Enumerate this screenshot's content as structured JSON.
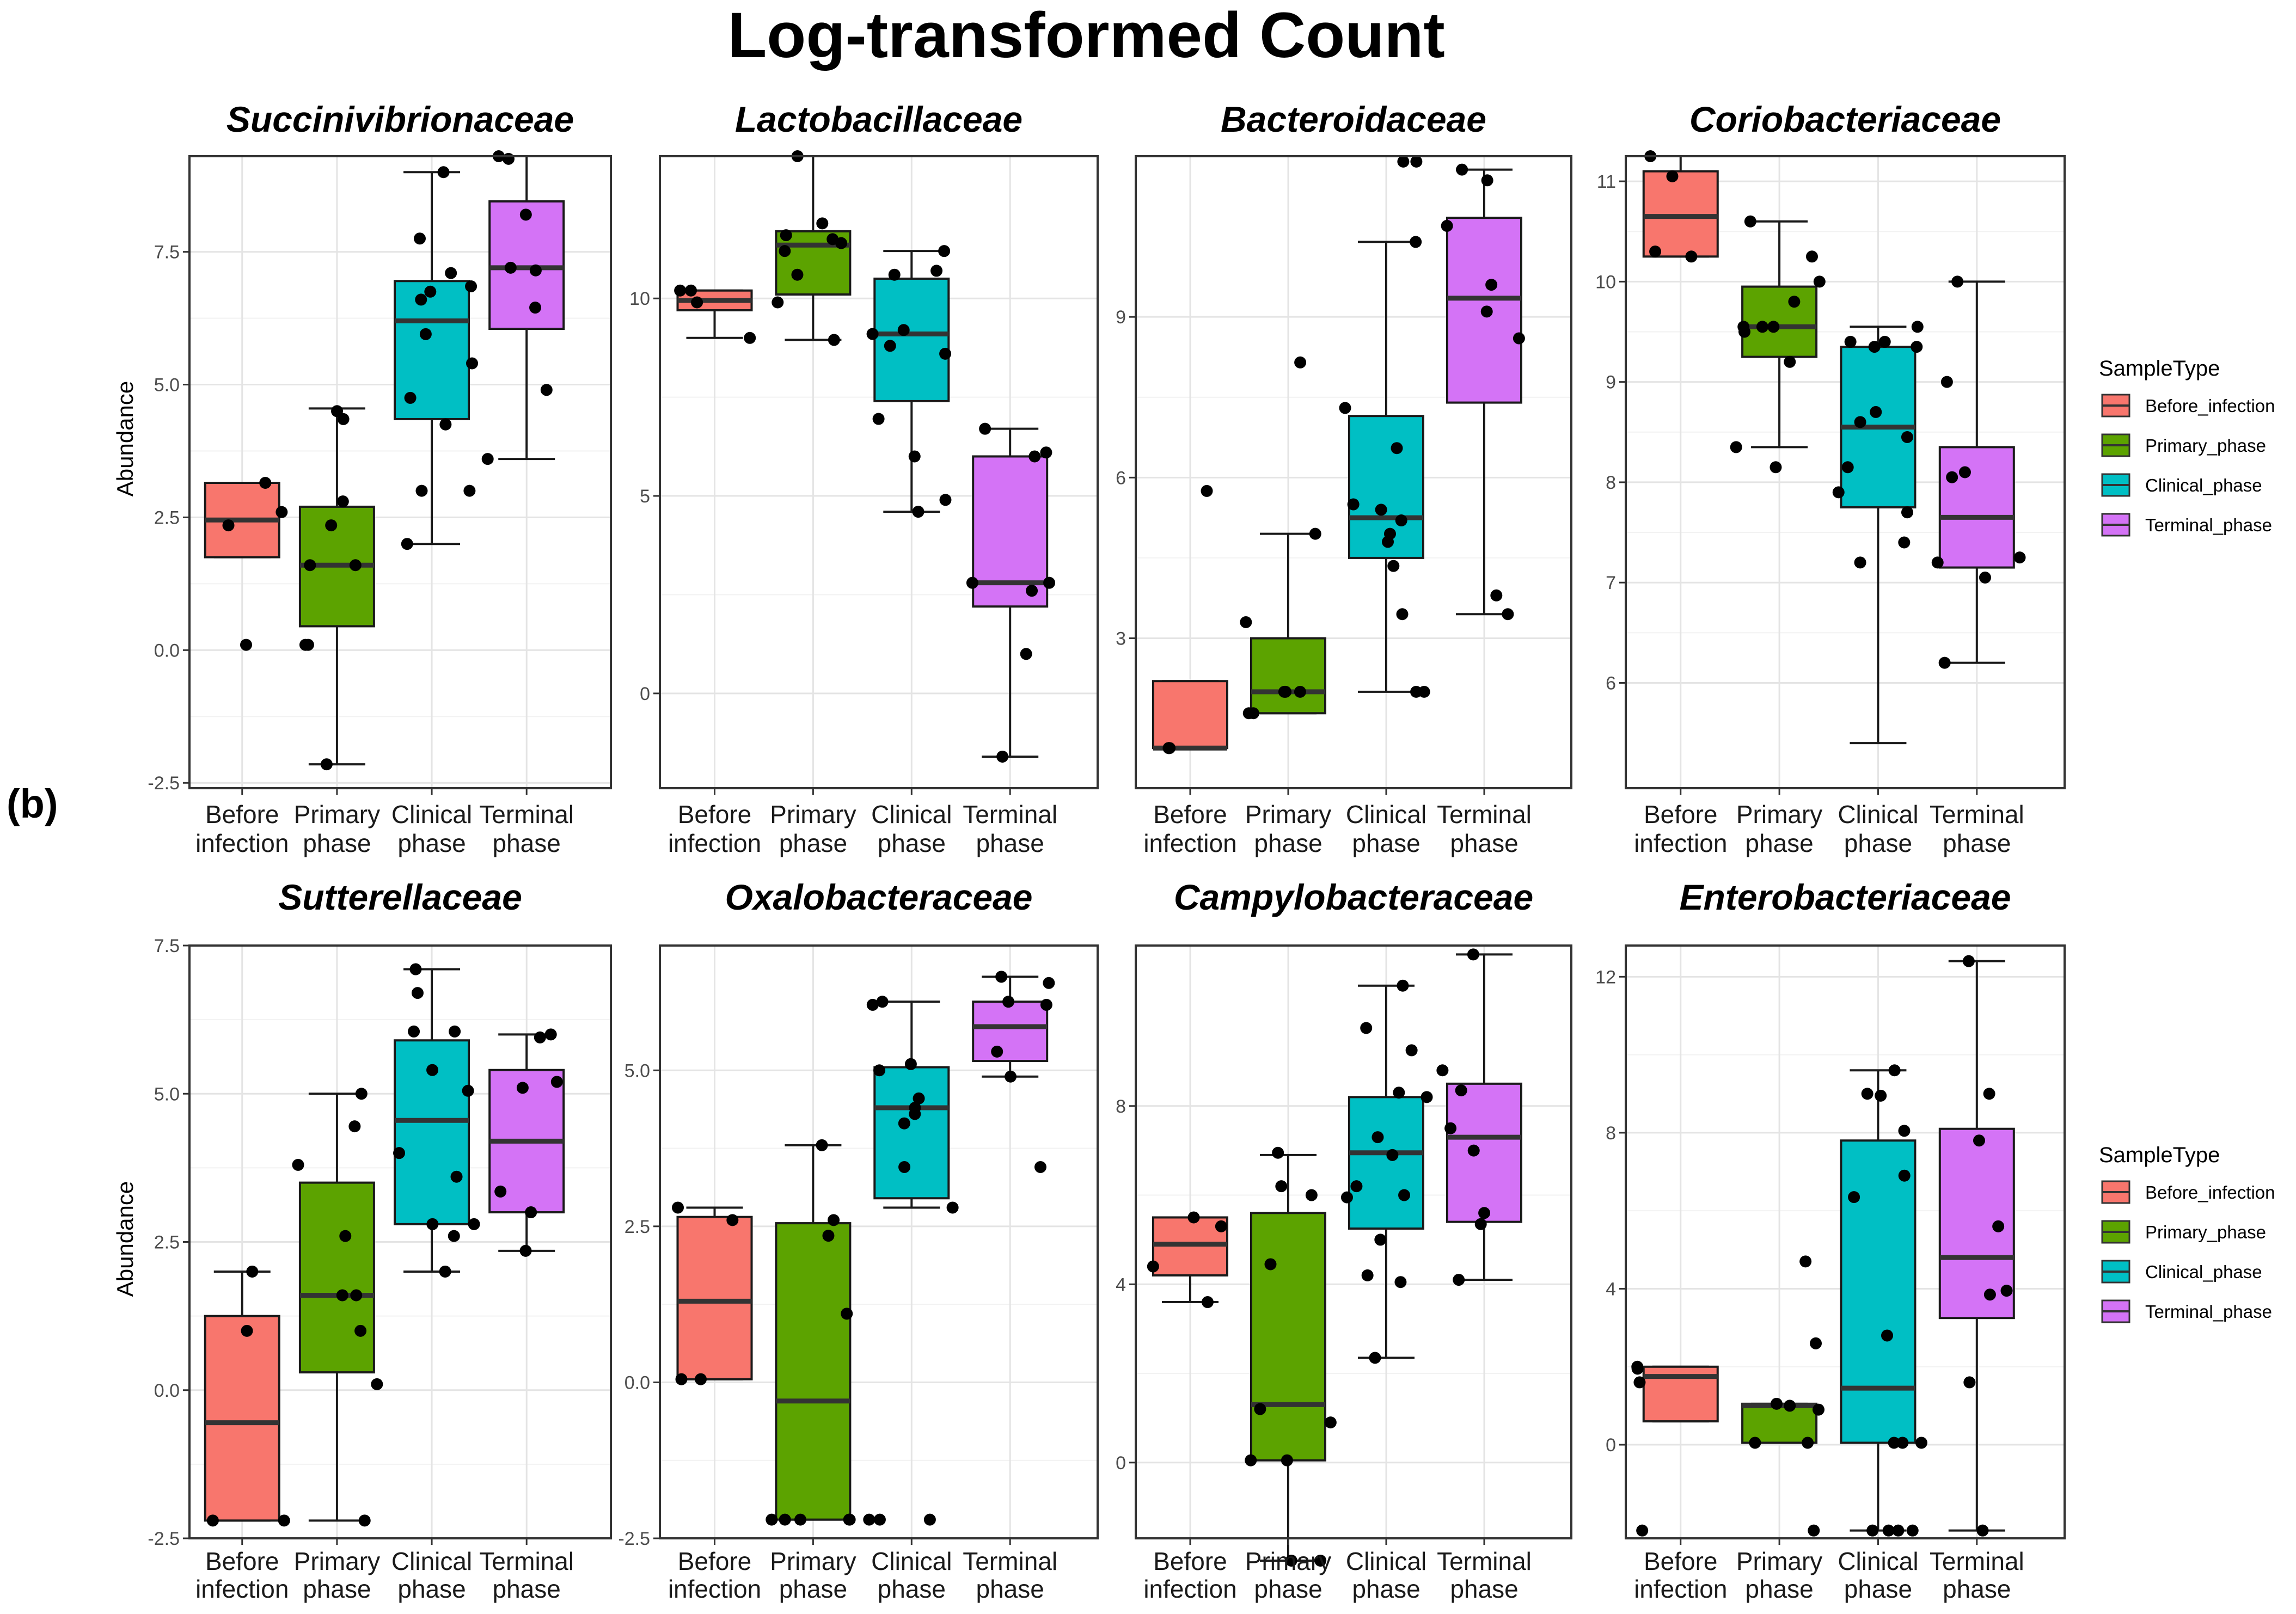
{
  "figure": {
    "title": "Log-transformed Count",
    "panel_label": "(b)",
    "ylabel": "Abundance",
    "category_labels": [
      [
        "Before",
        "infection"
      ],
      [
        "Primary",
        "phase"
      ],
      [
        "Clinical",
        "phase"
      ],
      [
        "Terminal",
        "phase"
      ]
    ]
  },
  "legend": {
    "title": "SampleType",
    "items": [
      {
        "label": "Before_infection",
        "color": "#F8766D"
      },
      {
        "label": "Primary_phase",
        "color": "#5CA300"
      },
      {
        "label": "Clinical_phase",
        "color": "#00BFC4"
      },
      {
        "label": "Terminal_phase",
        "color": "#D473F6"
      }
    ]
  },
  "chart_data": [
    {
      "type": "boxplot",
      "title": "Succinivibrionaceae",
      "ylim": [
        -2.6,
        9.3
      ],
      "yticks": [
        -2.5,
        0.0,
        2.5,
        5.0,
        7.5
      ],
      "ytick_labels": [
        "-2.5",
        "0.0",
        "2.5",
        "5.0",
        "7.5"
      ],
      "boxes": [
        {
          "q1": 1.75,
          "median": 2.45,
          "q3": 3.15,
          "whisker_low": 1.75,
          "whisker_high": 3.15,
          "points": [
            0.1,
            2.35,
            2.6,
            3.15
          ]
        },
        {
          "q1": 0.45,
          "median": 1.6,
          "q3": 2.7,
          "whisker_low": -2.15,
          "whisker_high": 4.55,
          "points": [
            -2.15,
            0.1,
            0.1,
            1.6,
            1.6,
            2.35,
            2.8,
            4.35,
            4.5
          ]
        },
        {
          "q1": 4.35,
          "median": 6.2,
          "q3": 6.95,
          "whisker_low": 2.0,
          "whisker_high": 9.0,
          "points": [
            2.0,
            3.0,
            3.0,
            4.25,
            4.75,
            5.4,
            5.95,
            6.6,
            6.75,
            6.85,
            7.1,
            7.75,
            9.0
          ]
        },
        {
          "q1": 6.05,
          "median": 7.2,
          "q3": 8.45,
          "whisker_low": 3.6,
          "whisker_high": 9.3,
          "points": [
            3.6,
            4.9,
            6.45,
            7.15,
            7.2,
            8.2,
            9.25,
            9.3
          ]
        }
      ]
    },
    {
      "type": "boxplot",
      "title": "Lactobacillaceae",
      "ylim": [
        -2.4,
        13.6
      ],
      "yticks": [
        0,
        5,
        10
      ],
      "ytick_labels": [
        "0",
        "5",
        "10"
      ],
      "boxes": [
        {
          "q1": 9.7,
          "median": 9.95,
          "q3": 10.2,
          "whisker_low": 9.0,
          "whisker_high": 10.2,
          "points": [
            9.0,
            9.9,
            10.2,
            10.2
          ]
        },
        {
          "q1": 10.1,
          "median": 11.35,
          "q3": 11.7,
          "whisker_low": 8.95,
          "whisker_high": 13.6,
          "points": [
            8.95,
            9.9,
            10.6,
            11.2,
            11.4,
            11.5,
            11.6,
            11.9,
            13.6
          ]
        },
        {
          "q1": 7.4,
          "median": 9.1,
          "q3": 10.5,
          "whisker_low": 4.6,
          "whisker_high": 11.2,
          "points": [
            4.6,
            4.9,
            6.0,
            6.95,
            8.6,
            8.8,
            9.1,
            9.2,
            10.6,
            10.7,
            11.2
          ]
        },
        {
          "q1": 2.2,
          "median": 2.8,
          "q3": 6.0,
          "whisker_low": -1.6,
          "whisker_high": 6.7,
          "points": [
            -1.6,
            1.0,
            2.6,
            2.8,
            2.8,
            6.0,
            6.1,
            6.7
          ]
        }
      ]
    },
    {
      "type": "boxplot",
      "title": "Bacteroidaceae",
      "ylim": [
        0.2,
        12.0
      ],
      "yticks": [
        3,
        6,
        9
      ],
      "ytick_labels": [
        "3",
        "6",
        "9"
      ],
      "boxes": [
        {
          "q1": 0.95,
          "median": 0.95,
          "q3": 2.2,
          "whisker_low": 0.95,
          "whisker_high": 2.2,
          "points": [
            0.95,
            0.95,
            0.95,
            5.75
          ]
        },
        {
          "q1": 1.6,
          "median": 2.0,
          "q3": 3.0,
          "whisker_low": 1.6,
          "whisker_high": 4.95,
          "points": [
            1.6,
            1.6,
            2.0,
            2.0,
            2.0,
            3.3,
            4.95,
            8.15
          ]
        },
        {
          "q1": 4.5,
          "median": 5.25,
          "q3": 7.15,
          "whisker_low": 2.0,
          "whisker_high": 10.4,
          "points": [
            2.0,
            2.0,
            3.45,
            4.35,
            4.8,
            4.95,
            5.2,
            5.4,
            5.5,
            6.55,
            7.3,
            10.4,
            11.9,
            11.9
          ]
        },
        {
          "q1": 7.4,
          "median": 9.35,
          "q3": 10.85,
          "whisker_low": 3.45,
          "whisker_high": 11.75,
          "points": [
            3.45,
            3.8,
            8.6,
            9.1,
            9.6,
            10.7,
            11.55,
            11.75
          ]
        }
      ]
    },
    {
      "type": "boxplot",
      "title": "Coriobacteriaceae",
      "ylim": [
        4.95,
        11.25
      ],
      "yticks": [
        6,
        7,
        8,
        9,
        10,
        11
      ],
      "ytick_labels": [
        "6",
        "7",
        "8",
        "9",
        "10",
        "11"
      ],
      "boxes": [
        {
          "q1": 10.25,
          "median": 10.65,
          "q3": 11.1,
          "whisker_low": 10.25,
          "whisker_high": 11.25,
          "points": [
            10.25,
            10.3,
            11.05,
            11.25
          ]
        },
        {
          "q1": 9.25,
          "median": 9.55,
          "q3": 9.95,
          "whisker_low": 8.35,
          "whisker_high": 10.6,
          "points": [
            8.15,
            8.35,
            9.2,
            9.5,
            9.55,
            9.55,
            9.55,
            9.8,
            10.0,
            10.25,
            10.6
          ]
        },
        {
          "q1": 7.75,
          "median": 8.55,
          "q3": 9.35,
          "whisker_low": 5.4,
          "whisker_high": 9.55,
          "points": [
            7.2,
            7.4,
            7.7,
            7.9,
            8.15,
            8.45,
            8.6,
            8.7,
            9.35,
            9.35,
            9.4,
            9.4,
            9.55
          ]
        },
        {
          "q1": 7.15,
          "median": 7.65,
          "q3": 8.35,
          "whisker_low": 6.2,
          "whisker_high": 10.0,
          "points": [
            6.2,
            7.05,
            7.2,
            7.25,
            8.05,
            8.1,
            9.0,
            10.0
          ]
        }
      ]
    },
    {
      "type": "boxplot",
      "title": "Sutterellaceae",
      "ylim": [
        -2.5,
        7.5
      ],
      "yticks": [
        -2.5,
        0.0,
        2.5,
        5.0,
        7.5
      ],
      "ytick_labels": [
        "-2.5",
        "0.0",
        "2.5",
        "5.0",
        "7.5"
      ],
      "boxes": [
        {
          "q1": -2.2,
          "median": -0.55,
          "q3": 1.25,
          "whisker_low": -2.2,
          "whisker_high": 2.0,
          "points": [
            -2.2,
            -2.2,
            1.0,
            2.0
          ]
        },
        {
          "q1": 0.3,
          "median": 1.6,
          "q3": 3.5,
          "whisker_low": -2.2,
          "whisker_high": 5.0,
          "points": [
            -2.2,
            0.1,
            1.0,
            1.6,
            1.6,
            2.6,
            3.8,
            4.45,
            5.0
          ]
        },
        {
          "q1": 2.8,
          "median": 4.55,
          "q3": 5.9,
          "whisker_low": 2.0,
          "whisker_high": 7.1,
          "points": [
            2.0,
            2.6,
            2.8,
            2.8,
            3.6,
            4.0,
            5.05,
            5.4,
            6.05,
            6.05,
            6.7,
            7.1
          ]
        },
        {
          "q1": 3.0,
          "median": 4.2,
          "q3": 5.4,
          "whisker_low": 2.35,
          "whisker_high": 6.0,
          "points": [
            2.35,
            3.0,
            3.35,
            5.1,
            5.2,
            5.95,
            6.0
          ]
        }
      ]
    },
    {
      "type": "boxplot",
      "title": "Oxalobacteraceae",
      "ylim": [
        -2.5,
        7.0
      ],
      "yticks": [
        -2.5,
        0.0,
        2.5,
        5.0
      ],
      "ytick_labels": [
        "-2.5",
        "0.0",
        "2.5",
        "5.0"
      ],
      "boxes": [
        {
          "q1": 0.05,
          "median": 1.3,
          "q3": 2.65,
          "whisker_low": 0.05,
          "whisker_high": 2.8,
          "points": [
            0.05,
            0.05,
            2.6,
            2.8
          ]
        },
        {
          "q1": -2.2,
          "median": -0.3,
          "q3": 2.55,
          "whisker_low": -2.2,
          "whisker_high": 3.8,
          "points": [
            -2.2,
            -2.2,
            -2.2,
            -2.2,
            -2.2,
            1.1,
            2.35,
            2.6,
            3.8
          ]
        },
        {
          "q1": 2.95,
          "median": 4.4,
          "q3": 5.05,
          "whisker_low": 2.8,
          "whisker_high": 6.1,
          "points": [
            -2.2,
            -2.2,
            -2.2,
            2.8,
            3.45,
            4.15,
            4.3,
            4.4,
            4.55,
            5.0,
            5.1,
            6.05,
            6.1
          ]
        },
        {
          "q1": 5.15,
          "median": 5.7,
          "q3": 6.1,
          "whisker_low": 4.9,
          "whisker_high": 6.5,
          "points": [
            3.45,
            4.9,
            5.3,
            6.05,
            6.1,
            6.4,
            6.5
          ]
        }
      ]
    },
    {
      "type": "boxplot",
      "title": "Campylobacteraceae",
      "ylim": [
        -1.7,
        11.6
      ],
      "yticks": [
        0,
        4,
        8
      ],
      "ytick_labels": [
        "0",
        "4",
        "8"
      ],
      "boxes": [
        {
          "q1": 4.2,
          "median": 4.9,
          "q3": 5.5,
          "whisker_low": 3.6,
          "whisker_high": 5.5,
          "points": [
            3.6,
            4.4,
            5.3,
            5.5
          ]
        },
        {
          "q1": 0.05,
          "median": 1.3,
          "q3": 5.6,
          "whisker_low": -2.2,
          "whisker_high": 6.9,
          "points": [
            -2.2,
            -2.2,
            0.05,
            0.05,
            0.9,
            1.2,
            4.45,
            6.0,
            6.2,
            6.95
          ]
        },
        {
          "q1": 5.25,
          "median": 6.95,
          "q3": 8.2,
          "whisker_low": 2.35,
          "whisker_high": 10.7,
          "points": [
            2.35,
            4.05,
            4.2,
            5.0,
            5.95,
            6.0,
            6.2,
            6.9,
            7.3,
            8.2,
            8.3,
            9.25,
            9.75,
            10.7
          ]
        },
        {
          "q1": 5.4,
          "median": 7.3,
          "q3": 8.5,
          "whisker_low": 4.1,
          "whisker_high": 11.4,
          "points": [
            4.1,
            5.35,
            5.6,
            7.0,
            7.5,
            8.35,
            8.8,
            11.4
          ]
        }
      ]
    },
    {
      "type": "boxplot",
      "title": "Enterobacteriaceae",
      "ylim": [
        -2.4,
        12.8
      ],
      "yticks": [
        0,
        4,
        8,
        12
      ],
      "ytick_labels": [
        "0",
        "4",
        "8",
        "12"
      ],
      "boxes": [
        {
          "q1": 0.6,
          "median": 1.75,
          "q3": 2.0,
          "whisker_low": 0.6,
          "whisker_high": 2.0,
          "points": [
            -2.2,
            1.6,
            1.95,
            2.0
          ]
        },
        {
          "q1": 0.05,
          "median": 1.0,
          "q3": 1.05,
          "whisker_low": 0.05,
          "whisker_high": 1.05,
          "points": [
            -2.2,
            0.05,
            0.05,
            0.9,
            1.0,
            1.05,
            2.6,
            4.7
          ]
        },
        {
          "q1": 0.05,
          "median": 1.45,
          "q3": 7.8,
          "whisker_low": -2.2,
          "whisker_high": 9.6,
          "points": [
            -2.2,
            -2.2,
            -2.2,
            -2.2,
            0.05,
            0.05,
            0.05,
            2.8,
            6.35,
            6.9,
            8.05,
            8.95,
            9.0,
            9.6
          ]
        },
        {
          "q1": 3.25,
          "median": 4.8,
          "q3": 8.1,
          "whisker_low": -2.2,
          "whisker_high": 12.4,
          "points": [
            -2.2,
            1.6,
            3.85,
            3.95,
            5.6,
            7.8,
            9.0,
            12.4
          ]
        }
      ]
    }
  ]
}
